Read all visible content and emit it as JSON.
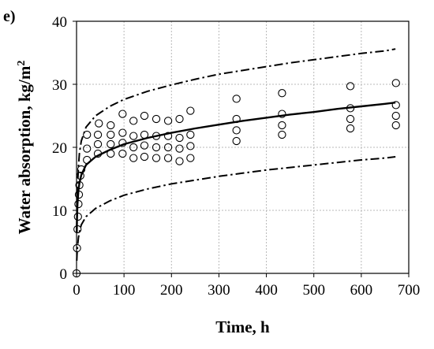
{
  "chart_data": {
    "type": "scatter",
    "panel_label": "e)",
    "xlabel": "Time, h",
    "ylabel": "Water absorption, kg/m",
    "ylabel_superscript": "2",
    "xlim": [
      0,
      700
    ],
    "ylim": [
      0,
      40
    ],
    "x_ticks": [
      "0",
      "100",
      "200",
      "300",
      "400",
      "500",
      "600",
      "700"
    ],
    "y_ticks": [
      "0",
      "10",
      "20",
      "30",
      "40"
    ],
    "grid": true,
    "legend": "none",
    "series": [
      {
        "kind": "points",
        "marker": "open-circle",
        "points": [
          [
            0,
            0
          ],
          [
            1,
            4
          ],
          [
            2,
            7
          ],
          [
            3,
            9
          ],
          [
            4,
            11
          ],
          [
            5,
            12.5
          ],
          [
            6,
            14
          ],
          [
            8,
            15.5
          ],
          [
            10,
            16.5
          ],
          [
            22,
            18
          ],
          [
            22,
            19.8
          ],
          [
            22,
            22
          ],
          [
            45,
            19
          ],
          [
            45,
            20.5
          ],
          [
            45,
            22
          ],
          [
            47,
            23.8
          ],
          [
            72,
            19
          ],
          [
            72,
            20.5
          ],
          [
            72,
            22
          ],
          [
            72,
            23.5
          ],
          [
            97,
            19
          ],
          [
            97,
            20.7
          ],
          [
            97,
            22.3
          ],
          [
            97,
            25.3
          ],
          [
            120,
            18.3
          ],
          [
            120,
            20
          ],
          [
            120,
            21.8
          ],
          [
            120,
            24.2
          ],
          [
            143,
            18.5
          ],
          [
            143,
            20.3
          ],
          [
            143,
            22
          ],
          [
            143,
            25
          ],
          [
            168,
            18.3
          ],
          [
            168,
            20
          ],
          [
            168,
            21.8
          ],
          [
            168,
            24.5
          ],
          [
            193,
            18.3
          ],
          [
            193,
            20
          ],
          [
            193,
            21.8
          ],
          [
            193,
            24.2
          ],
          [
            217,
            17.8
          ],
          [
            217,
            19.8
          ],
          [
            217,
            21.5
          ],
          [
            217,
            24.5
          ],
          [
            240,
            18.3
          ],
          [
            240,
            20.2
          ],
          [
            240,
            22
          ],
          [
            240,
            25.8
          ],
          [
            337,
            21
          ],
          [
            337,
            22.7
          ],
          [
            337,
            24.5
          ],
          [
            337,
            27.7
          ],
          [
            433,
            22
          ],
          [
            433,
            23.5
          ],
          [
            433,
            25.3
          ],
          [
            433,
            28.6
          ],
          [
            577,
            23
          ],
          [
            577,
            24.5
          ],
          [
            577,
            26.2
          ],
          [
            577,
            29.7
          ],
          [
            673,
            23.5
          ],
          [
            673,
            25
          ],
          [
            673,
            26.7
          ],
          [
            673,
            30.2
          ]
        ]
      },
      {
        "kind": "line",
        "style": "solid",
        "points": [
          [
            0.5,
            6.5
          ],
          [
            1,
            8.7
          ],
          [
            2,
            11
          ],
          [
            4,
            13.2
          ],
          [
            6,
            14.3
          ],
          [
            10,
            15.6
          ],
          [
            20,
            17.2
          ],
          [
            40,
            18.5
          ],
          [
            70,
            19.6
          ],
          [
            100,
            20.5
          ],
          [
            150,
            21.5
          ],
          [
            200,
            22.3
          ],
          [
            250,
            23
          ],
          [
            300,
            23.6
          ],
          [
            350,
            24.2
          ],
          [
            400,
            24.7
          ],
          [
            450,
            25.2
          ],
          [
            500,
            25.6
          ],
          [
            550,
            26.1
          ],
          [
            600,
            26.5
          ],
          [
            650,
            26.9
          ],
          [
            672,
            27.1
          ]
        ]
      },
      {
        "kind": "line",
        "style": "dash-dot",
        "points": [
          [
            0.5,
            7
          ],
          [
            1,
            10
          ],
          [
            2,
            13.5
          ],
          [
            4,
            17
          ],
          [
            6,
            19
          ],
          [
            10,
            21
          ],
          [
            20,
            23.2
          ],
          [
            40,
            25
          ],
          [
            70,
            26.5
          ],
          [
            100,
            27.6
          ],
          [
            150,
            28.9
          ],
          [
            200,
            29.9
          ],
          [
            250,
            30.8
          ],
          [
            300,
            31.6
          ],
          [
            350,
            32.2
          ],
          [
            400,
            32.8
          ],
          [
            450,
            33.4
          ],
          [
            500,
            33.9
          ],
          [
            550,
            34.4
          ],
          [
            600,
            34.9
          ],
          [
            650,
            35.3
          ],
          [
            672,
            35.6
          ]
        ]
      },
      {
        "kind": "line",
        "style": "dash-dot",
        "points": [
          [
            0.5,
            2
          ],
          [
            1,
            3
          ],
          [
            2,
            4.2
          ],
          [
            4,
            5.7
          ],
          [
            6,
            6.5
          ],
          [
            10,
            7.7
          ],
          [
            20,
            9
          ],
          [
            40,
            10.3
          ],
          [
            70,
            11.5
          ],
          [
            100,
            12.4
          ],
          [
            150,
            13.4
          ],
          [
            200,
            14.2
          ],
          [
            250,
            14.8
          ],
          [
            300,
            15.4
          ],
          [
            350,
            15.9
          ],
          [
            400,
            16.4
          ],
          [
            450,
            16.8
          ],
          [
            500,
            17.2
          ],
          [
            550,
            17.6
          ],
          [
            600,
            18
          ],
          [
            650,
            18.3
          ],
          [
            672,
            18.5
          ]
        ]
      }
    ]
  }
}
